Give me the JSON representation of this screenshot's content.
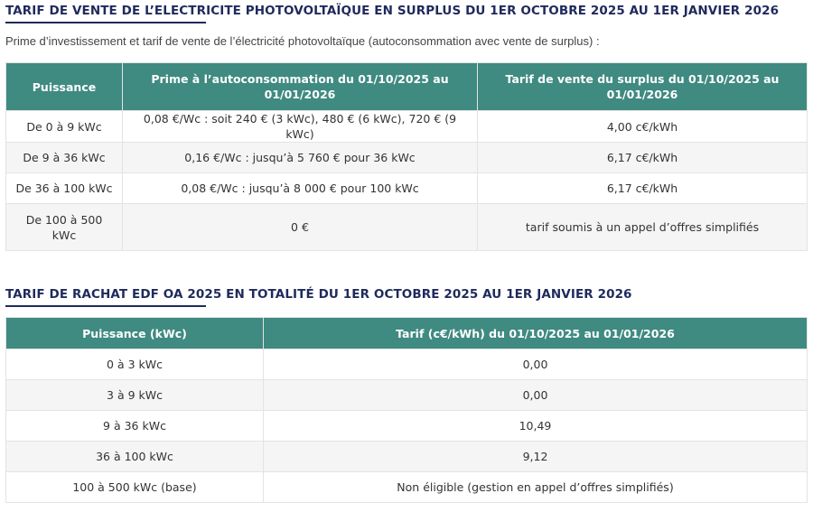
{
  "section1": {
    "title": "TARIF DE VENTE DE L’ELECTRICITE PHOTOVOLTAÏQUE EN SURPLUS DU 1ER OCTOBRE 2025 AU 1ER JANVIER 2026",
    "intro": "Prime d’investissement et tarif de vente de l’électricité photovoltaïque (autoconsommation avec vente de surplus) :",
    "headers": [
      "Puissance",
      "Prime à l’autoconsommation du 01/10/2025 au 01/01/2026",
      "Tarif de vente du surplus du 01/10/2025 au 01/01/2026"
    ],
    "rows": [
      [
        "De 0 à 9 kWc",
        "0,08 €/Wc : soit 240 € (3 kWc), 480 € (6 kWc), 720 € (9 kWc)",
        "4,00 c€/kWh"
      ],
      [
        "De 9 à 36 kWc",
        "0,16 €/Wc : jusqu’à 5 760 € pour 36 kWc",
        "6,17 c€/kWh"
      ],
      [
        "De 36 à 100 kWc",
        "0,08 €/Wc : jusqu’à 8 000 € pour 100 kWc",
        "6,17 c€/kWh"
      ],
      [
        "De 100 à 500 kWc",
        "0 €",
        "tarif soumis à un appel d’offres simplifiés"
      ]
    ]
  },
  "section2": {
    "title": "TARIF DE RACHAT EDF OA 2025 EN TOTALITÉ DU 1ER OCTOBRE 2025 AU 1ER JANVIER 2026",
    "headers": [
      "Puissance (kWc)",
      "Tarif (c€/kWh) du 01/10/2025 au 01/01/2026"
    ],
    "rows": [
      [
        "0 à 3 kWc",
        "0,00"
      ],
      [
        "3 à 9 kWc",
        "0,00"
      ],
      [
        "9 à 36 kWc",
        "10,49"
      ],
      [
        "36 à 100 kWc",
        "9,12"
      ],
      [
        "100 à 500 kWc (base)",
        "Non éligible (gestion en appel d’offres simplifiés)"
      ]
    ]
  },
  "colors": {
    "title": "#1f2a5c",
    "header_bg": "#3f8a81",
    "row_alt": "#f5f5f5"
  }
}
